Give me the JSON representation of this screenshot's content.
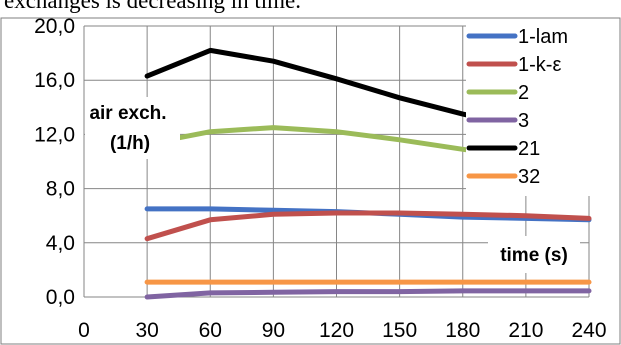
{
  "caption_fragment": "exchanges is decreasing in time.",
  "chart_data": {
    "type": "line",
    "ylabel_line1": "air exch.",
    "ylabel_line2": "(1/h)",
    "xlabel": "time (s)",
    "x_ticks": [
      "0",
      "30",
      "60",
      "90",
      "120",
      "150",
      "180",
      "210",
      "240"
    ],
    "y_ticks": [
      "0,0",
      "4,0",
      "8,0",
      "12,0",
      "16,0",
      "20,0"
    ],
    "xlim": [
      0,
      240
    ],
    "ylim": [
      0,
      20
    ],
    "grid": true,
    "legend_position": "right",
    "series": [
      {
        "name": "1-lam",
        "color": "#4472C4",
        "x": [
          30,
          60,
          90,
          120,
          150,
          180,
          210,
          240
        ],
        "y": [
          6.5,
          6.5,
          6.4,
          6.3,
          6.1,
          5.9,
          5.8,
          5.7
        ]
      },
      {
        "name": "1-k-ε",
        "color": "#C0504D",
        "x": [
          30,
          60,
          90,
          120,
          150,
          180,
          210,
          240
        ],
        "y": [
          4.3,
          5.7,
          6.1,
          6.2,
          6.2,
          6.1,
          6.0,
          5.8
        ]
      },
      {
        "name": "2",
        "color": "#9BBB59",
        "x": [
          30,
          60,
          90,
          120,
          150,
          180,
          210,
          240
        ],
        "y": [
          11.3,
          12.2,
          12.5,
          12.2,
          11.6,
          10.9,
          10.3,
          9.6
        ]
      },
      {
        "name": "3",
        "color": "#8064A2",
        "x": [
          30,
          60,
          90,
          120,
          150,
          180,
          210,
          240
        ],
        "y": [
          0.0,
          0.3,
          0.35,
          0.4,
          0.4,
          0.45,
          0.45,
          0.45
        ]
      },
      {
        "name": "21",
        "color": "#000000",
        "x": [
          30,
          60,
          90,
          120,
          150,
          180,
          210,
          240
        ],
        "y": [
          16.3,
          18.2,
          17.4,
          16.1,
          14.7,
          13.5,
          12.5,
          11.5
        ]
      },
      {
        "name": "32",
        "color": "#F79646",
        "x": [
          30,
          60,
          90,
          120,
          150,
          180,
          210,
          240
        ],
        "y": [
          1.1,
          1.1,
          1.1,
          1.1,
          1.1,
          1.1,
          1.1,
          1.1
        ]
      }
    ]
  }
}
